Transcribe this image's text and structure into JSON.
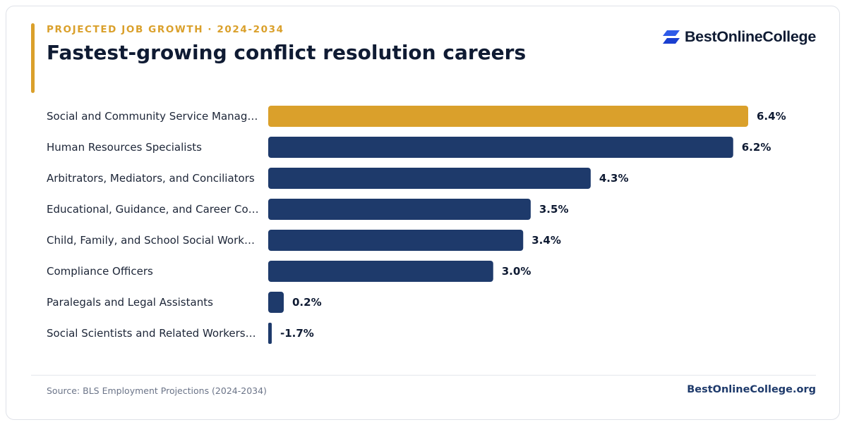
{
  "header": {
    "eyebrow": "PROJECTED JOB GROWTH · 2024-2034",
    "title": "Fastest-growing conflict resolution careers"
  },
  "brand": {
    "name": "BestOnlineCollege",
    "icon": "brand-logo-icon"
  },
  "colors": {
    "accent": "#daa02b",
    "bar": "#1e3a6b",
    "highlight_bar": "#daa02b",
    "text": "#0f1b33"
  },
  "chart_data": {
    "type": "bar",
    "orientation": "horizontal",
    "title": "Fastest-growing conflict resolution careers",
    "categories": [
      "Social and Community Service Manag…",
      "Human Resources Specialists",
      "Arbitrators, Mediators, and Conciliators",
      "Educational, Guidance, and Career Co…",
      "Child, Family, and School Social Work…",
      "Compliance Officers",
      "Paralegals and Legal Assistants",
      "Social Scientists and Related Workers…"
    ],
    "values": [
      6.4,
      6.2,
      4.3,
      3.5,
      3.4,
      3.0,
      0.2,
      -1.7
    ],
    "value_labels": [
      "6.4%",
      "6.2%",
      "4.3%",
      "3.5%",
      "3.4%",
      "3.0%",
      "0.2%",
      "-1.7%"
    ],
    "highlight_index": 0,
    "unit": "%",
    "grid": false,
    "legend": "none"
  },
  "footer": {
    "source": "Source: BLS Employment Projections (2024-2034)",
    "site": "BestOnlineCollege.org"
  }
}
